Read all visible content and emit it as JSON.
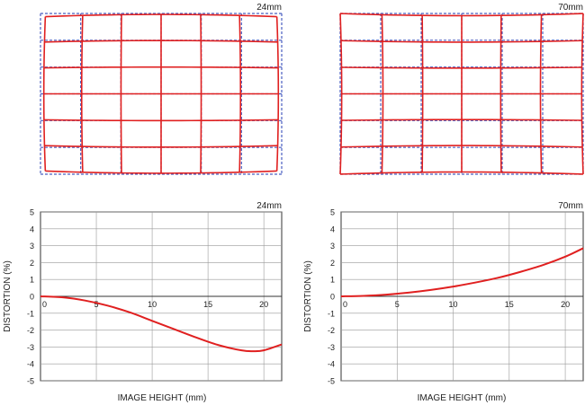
{
  "colors": {
    "measured": "#e02020",
    "ideal": "#4a5fc1",
    "grid": "#999999",
    "axis": "#333333"
  },
  "grid_panels": [
    {
      "label": "24mm",
      "distortion": "barrel"
    },
    {
      "label": "70mm",
      "distortion": "pincushion"
    }
  ],
  "chart_data": [
    {
      "type": "line",
      "title": "24mm",
      "xlabel": "IMAGE HEIGHT (mm)",
      "ylabel": "DISTORTION (%)",
      "xlim": [
        0,
        21.6
      ],
      "ylim": [
        -5,
        5
      ],
      "xticks": [
        0,
        5,
        10,
        15,
        20
      ],
      "yticks": [
        5,
        4,
        3,
        2,
        1,
        0,
        -1,
        -2,
        -3,
        -4,
        -5
      ],
      "grid": true,
      "series": [
        {
          "x": [
            0,
            2,
            4,
            6,
            8,
            10,
            12,
            14,
            16,
            18,
            19,
            20,
            21.6
          ],
          "y": [
            0,
            -0.06,
            -0.25,
            -0.55,
            -0.95,
            -1.45,
            -1.95,
            -2.45,
            -2.9,
            -3.2,
            -3.25,
            -3.2,
            -2.85
          ]
        }
      ]
    },
    {
      "type": "line",
      "title": "70mm",
      "xlabel": "IMAGE HEIGHT (mm)",
      "ylabel": "DISTORTION (%)",
      "xlim": [
        0,
        21.6
      ],
      "ylim": [
        -5,
        5
      ],
      "xticks": [
        0,
        5,
        10,
        15,
        20
      ],
      "yticks": [
        5,
        4,
        3,
        2,
        1,
        0,
        -1,
        -2,
        -3,
        -4,
        -5
      ],
      "grid": true,
      "series": [
        {
          "x": [
            0,
            2,
            4,
            6,
            8,
            10,
            12,
            14,
            16,
            18,
            20,
            21.6
          ],
          "y": [
            0,
            0.03,
            0.1,
            0.22,
            0.38,
            0.58,
            0.82,
            1.1,
            1.45,
            1.85,
            2.35,
            2.85
          ]
        }
      ]
    }
  ]
}
